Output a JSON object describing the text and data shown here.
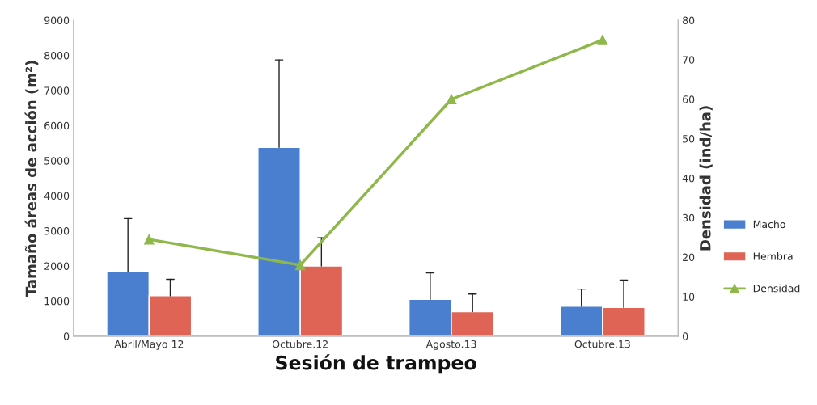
{
  "chart_data": {
    "type": "bar",
    "xlabel": "Sesión de trampeo",
    "ylabel": "Tamaño áreas de acción (m²)",
    "y2label": "Densidad (ind/ha)",
    "categories": [
      "Abril/Mayo 12",
      "Octubre.12",
      "Agosto.13",
      "Octubre.13"
    ],
    "series": [
      {
        "name": "Macho",
        "color": "#4a7fd0",
        "values": [
          1850,
          5380,
          1050,
          850
        ],
        "errors": [
          [
            1850,
            3350
          ],
          [
            5380,
            7870
          ],
          [
            1050,
            1800
          ],
          [
            850,
            1340
          ]
        ]
      },
      {
        "name": "Hembra",
        "color": "#e06455",
        "values": [
          1150,
          2000,
          700,
          820
        ],
        "errors": [
          [
            1150,
            1620
          ],
          [
            2000,
            2800
          ],
          [
            700,
            1200
          ],
          [
            820,
            1600
          ]
        ]
      },
      {
        "name": "Densidad",
        "type": "line",
        "axis": "y2",
        "color": "#8fb84a",
        "marker": "triangle",
        "values": [
          24.5,
          18,
          60,
          75
        ]
      }
    ],
    "ylim": [
      0,
      9000
    ],
    "yticks": [
      0,
      1000,
      2000,
      3000,
      4000,
      5000,
      6000,
      7000,
      8000,
      9000
    ],
    "y2lim": [
      0,
      80
    ],
    "y2ticks": [
      0,
      10,
      20,
      30,
      40,
      50,
      60,
      70,
      80
    ],
    "grid": false,
    "legend": "right"
  }
}
